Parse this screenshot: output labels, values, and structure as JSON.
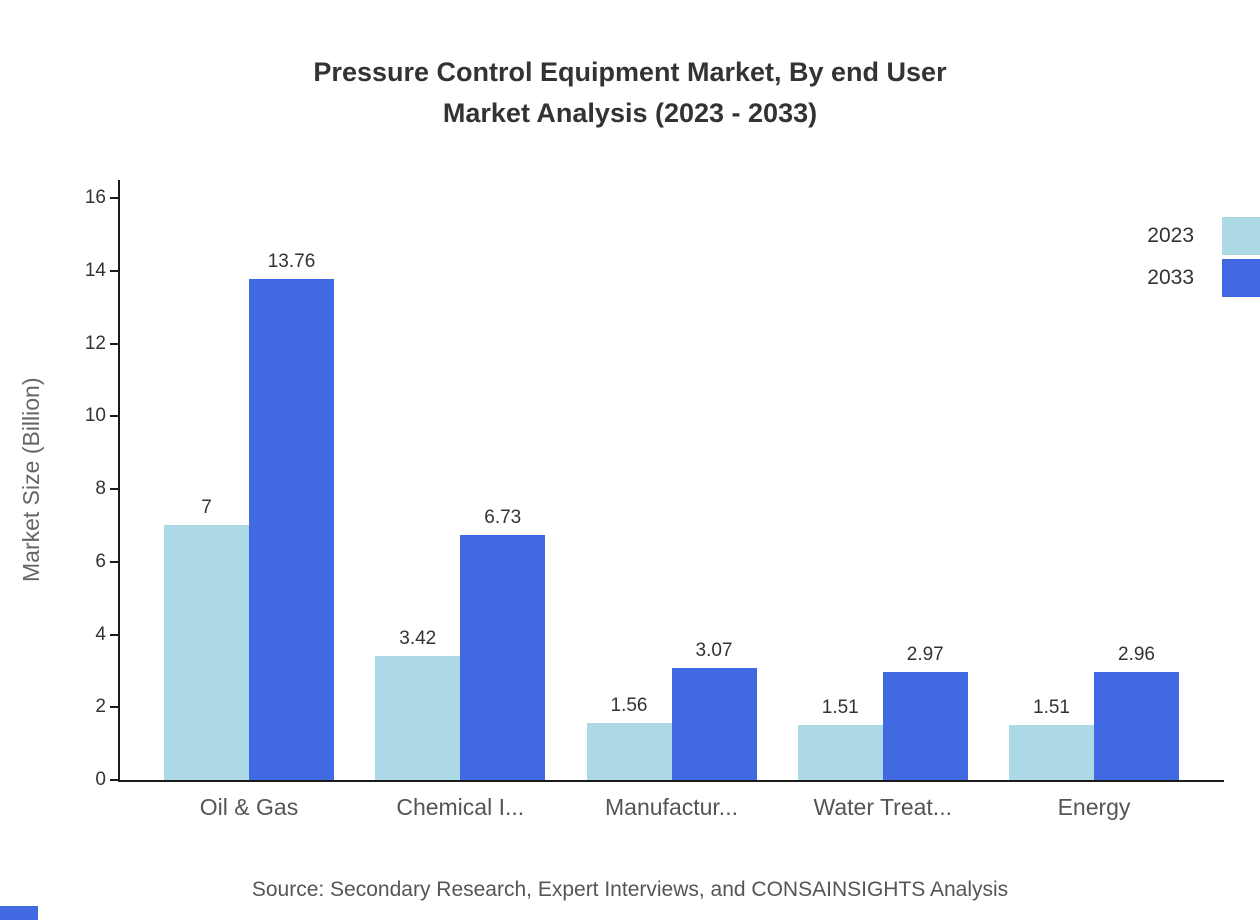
{
  "title": {
    "line1": "Pressure Control Equipment Market, By end User",
    "line2": "Market Analysis (2023 - 2033)"
  },
  "y_axis_label": "Market Size (Billion)",
  "source": "Source: Secondary Research, Expert Interviews, and CONSAINSIGHTS Analysis",
  "legend": [
    {
      "label": "2023",
      "color": "#ADD8E6"
    },
    {
      "label": "2033",
      "color": "#4169E1"
    }
  ],
  "chart_data": {
    "type": "bar",
    "title": "Pressure Control Equipment Market, By end User Market Analysis (2023 - 2033)",
    "categories": [
      "Oil & Gas",
      "Chemical I...",
      "Manufactur...",
      "Water Treat...",
      "Energy"
    ],
    "series": [
      {
        "name": "2023",
        "color": "#ADD8E6",
        "values": [
          7,
          3.42,
          1.56,
          1.51,
          1.51
        ]
      },
      {
        "name": "2033",
        "color": "#4169E1",
        "values": [
          13.76,
          6.73,
          3.07,
          2.97,
          2.96
        ]
      }
    ],
    "xlabel": "",
    "ylabel": "Market Size (Billion)",
    "ylim": [
      0,
      16
    ],
    "yticks": [
      0,
      2,
      4,
      6,
      8,
      10,
      12,
      14,
      16
    ],
    "grid": false,
    "legend_position": "top-right"
  }
}
